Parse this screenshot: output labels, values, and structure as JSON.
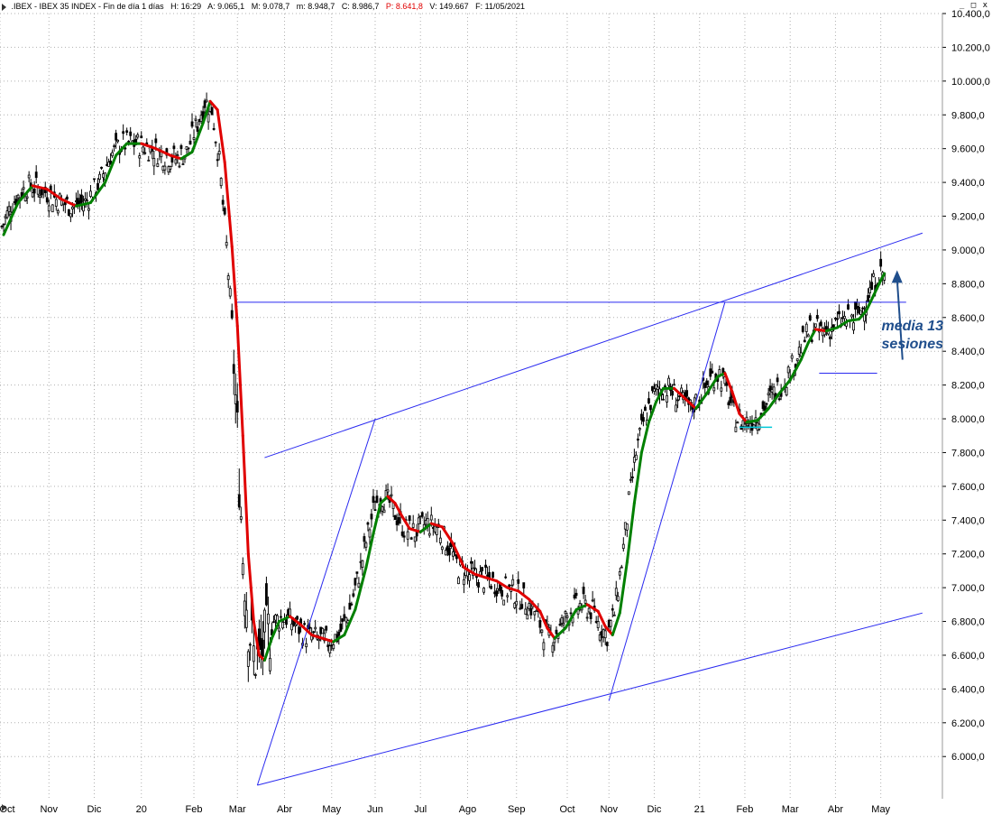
{
  "header": {
    "series": ".IBEX - IBEX 35 INDEX - Fin de día 1 días",
    "high": "H: 16:29",
    "open": "A: 9.065,1",
    "max": "M: 9.078,7",
    "min": "m: 8.948,7",
    "close": "C: 8.986,7",
    "prev": "P: 8.641,8",
    "volume": "V: 149.667",
    "date": "F: 11/05/2021"
  },
  "window_controls": "_ □ x",
  "colors": {
    "candle": "#000000",
    "ma_up": "#008000",
    "ma_down": "#e00000",
    "trendline": "#2a2af0",
    "support_cyan": "#00c8d8",
    "annotation": "#1f4e8c",
    "grid": "#b0b0b0"
  },
  "chart_data": {
    "type": "candlestick",
    "instrument": "IBEX 35 INDEX",
    "x_tick_labels": [
      "Oct",
      "Nov",
      "Dic",
      "20",
      "Feb",
      "Mar",
      "Abr",
      "May",
      "Jun",
      "Jul",
      "Ago",
      "Sep",
      "Oct",
      "Nov",
      "Dic",
      "21",
      "Feb",
      "Mar",
      "Abr",
      "May"
    ],
    "y_tick_labels": [
      "6.000,0",
      "6.200,0",
      "6.400,0",
      "6.600,0",
      "6.800,0",
      "7.000,0",
      "7.200,0",
      "7.400,0",
      "7.600,0",
      "7.800,0",
      "8.000,0",
      "8.200,0",
      "8.400,0",
      "8.600,0",
      "8.800,0",
      "9.000,0",
      "9.200,0",
      "9.400,0",
      "9.600,0",
      "9.800,0",
      "10.000,0",
      "10.200,0",
      "10.400,0"
    ],
    "y_ticks": [
      6000,
      6200,
      6400,
      6600,
      6800,
      7000,
      7200,
      7400,
      7600,
      7800,
      8000,
      8200,
      8400,
      8600,
      8800,
      9000,
      9200,
      9400,
      9600,
      9800,
      10000,
      10200,
      10400
    ],
    "ylim": [
      5750,
      10400
    ],
    "xlim": [
      0,
      520
    ],
    "x_ticks": [
      0,
      27,
      52,
      78,
      107,
      131,
      157,
      183,
      207,
      232,
      258,
      285,
      313,
      336,
      361,
      386,
      411,
      436,
      461,
      486
    ],
    "moving_average": {
      "name": "media 13 sesiones",
      "points": [
        [
          2,
          9090
        ],
        [
          10,
          9280
        ],
        [
          18,
          9380
        ],
        [
          26,
          9360
        ],
        [
          34,
          9300
        ],
        [
          42,
          9260
        ],
        [
          50,
          9280
        ],
        [
          58,
          9400
        ],
        [
          64,
          9560
        ],
        [
          70,
          9630
        ],
        [
          78,
          9630
        ],
        [
          86,
          9600
        ],
        [
          94,
          9560
        ],
        [
          100,
          9540
        ],
        [
          106,
          9580
        ],
        [
          112,
          9750
        ],
        [
          116,
          9880
        ],
        [
          120,
          9830
        ],
        [
          124,
          9520
        ],
        [
          128,
          9020
        ],
        [
          131,
          8550
        ],
        [
          134,
          7900
        ],
        [
          137,
          7200
        ],
        [
          140,
          6800
        ],
        [
          143,
          6600
        ],
        [
          146,
          6570
        ],
        [
          150,
          6700
        ],
        [
          154,
          6800
        ],
        [
          160,
          6830
        ],
        [
          166,
          6780
        ],
        [
          172,
          6720
        ],
        [
          178,
          6700
        ],
        [
          184,
          6680
        ],
        [
          190,
          6720
        ],
        [
          196,
          6870
        ],
        [
          202,
          7120
        ],
        [
          206,
          7320
        ],
        [
          210,
          7500
        ],
        [
          214,
          7540
        ],
        [
          218,
          7500
        ],
        [
          222,
          7420
        ],
        [
          226,
          7350
        ],
        [
          232,
          7330
        ],
        [
          238,
          7380
        ],
        [
          244,
          7360
        ],
        [
          250,
          7260
        ],
        [
          256,
          7120
        ],
        [
          262,
          7080
        ],
        [
          268,
          7060
        ],
        [
          274,
          7040
        ],
        [
          280,
          7000
        ],
        [
          286,
          6980
        ],
        [
          292,
          6930
        ],
        [
          298,
          6860
        ],
        [
          302,
          6760
        ],
        [
          306,
          6700
        ],
        [
          312,
          6760
        ],
        [
          318,
          6870
        ],
        [
          324,
          6900
        ],
        [
          330,
          6860
        ],
        [
          334,
          6770
        ],
        [
          338,
          6720
        ],
        [
          342,
          6850
        ],
        [
          346,
          7150
        ],
        [
          350,
          7500
        ],
        [
          354,
          7800
        ],
        [
          358,
          7980
        ],
        [
          362,
          8100
        ],
        [
          366,
          8180
        ],
        [
          372,
          8180
        ],
        [
          378,
          8120
        ],
        [
          384,
          8060
        ],
        [
          390,
          8150
        ],
        [
          396,
          8250
        ],
        [
          400,
          8270
        ],
        [
          404,
          8160
        ],
        [
          408,
          8030
        ],
        [
          412,
          7980
        ],
        [
          418,
          7990
        ],
        [
          424,
          8060
        ],
        [
          430,
          8150
        ],
        [
          436,
          8230
        ],
        [
          442,
          8350
        ],
        [
          446,
          8450
        ],
        [
          450,
          8530
        ],
        [
          456,
          8520
        ],
        [
          462,
          8540
        ],
        [
          468,
          8580
        ],
        [
          474,
          8590
        ],
        [
          478,
          8640
        ],
        [
          482,
          8730
        ],
        [
          486,
          8820
        ],
        [
          488,
          8860
        ]
      ]
    },
    "trendlines": [
      {
        "from": [
          142,
          5830
        ],
        "to": [
          509,
          6850
        ]
      },
      {
        "from": [
          146,
          7770
        ],
        "to": [
          509,
          9100
        ]
      },
      {
        "from": [
          131,
          8690
        ],
        "to": [
          500,
          8690
        ]
      },
      {
        "from": [
          142,
          5830
        ],
        "to": [
          207,
          8000
        ]
      },
      {
        "from": [
          336,
          6330
        ],
        "to": [
          400,
          8690
        ]
      },
      {
        "from": [
          452,
          8270
        ],
        "to": [
          484,
          8270
        ]
      }
    ],
    "support_segments": [
      {
        "from": [
          408,
          7950
        ],
        "to": [
          426,
          7950
        ]
      }
    ],
    "annotations": [
      {
        "text": [
          "media 13",
          "sesiones"
        ],
        "arrow_from": [
          498,
          8350
        ],
        "arrow_to": [
          495,
          8880
        ]
      }
    ]
  }
}
